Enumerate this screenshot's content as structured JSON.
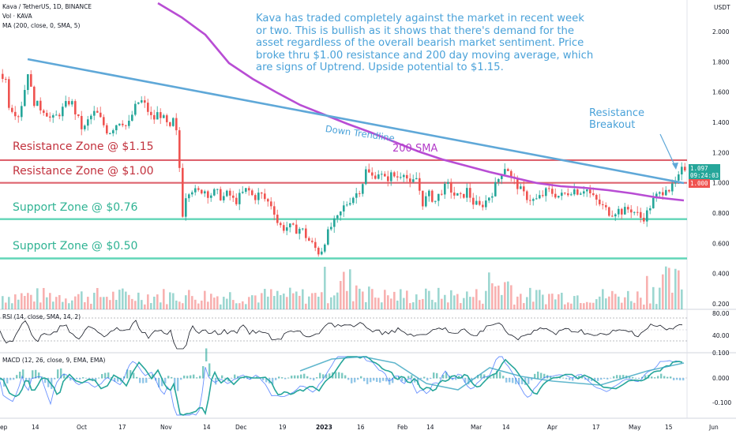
{
  "header": {
    "title": "Kava / TetherUS, 1D, BINANCE",
    "volume": "Vol · KAVA",
    "ma": "MA (200, close, 0, SMA, 5)",
    "rsi": "RSI (14, close, SMA, 14, 2)",
    "macd": "MACD (12, 26, close, 9, EMA, EMA)",
    "currency": "USDT"
  },
  "annotation": "Kava has traded completely against the market in recent week or two. This is bullish as it shows that there's demand for the asset regardless of the overall bearish market sentiment. Price broke thru $1.00 resistance and 200 day moving average, which are signs of Uptrend. Upside potential to $1.15.",
  "labels": {
    "resistance_115": "Resistance Zone @ $1.15",
    "resistance_100": "Resistance Zone @ $1.00",
    "support_076": "Support Zone @ $0.76",
    "support_050": "Support Zone @ $0.50",
    "down_trendline": "Down Trendline",
    "sma_200": "200 SMA",
    "resistance_breakout_1": "Resistance",
    "resistance_breakout_2": "Breakout"
  },
  "price_badges": {
    "last": "1.097",
    "timer": "09:24:03",
    "ma_value": "1.000"
  },
  "colors": {
    "up": "#26a69a",
    "down": "#ef5350",
    "trendline": "#5fa8d8",
    "sma": "#b84dd4",
    "resistance": "#d63d4a",
    "support": "#4fd1b0",
    "annotation": "#4aa2d9"
  },
  "chart_data": {
    "type": "candlestick",
    "x_ticks": [
      "ep",
      "14",
      "Oct",
      "17",
      "Nov",
      "14",
      "Dec",
      "19",
      "2023",
      "16",
      "Feb",
      "14",
      "Mar",
      "14",
      "Apr",
      "17",
      "May",
      "15",
      "Jun"
    ],
    "y_ticks": [
      "2.000",
      "1.800",
      "1.600",
      "1.400",
      "1.200",
      "1.000",
      "0.800",
      "0.600",
      "0.400",
      "0.200"
    ],
    "ylim": [
      0.15,
      2.2
    ],
    "rsi_ticks": [
      "80.00",
      "40.00"
    ],
    "macd_ticks": [
      "0.100",
      "0.000",
      "-0.100"
    ],
    "resistance_levels": [
      1.15,
      1.0
    ],
    "support_levels": [
      0.76,
      0.5
    ],
    "price_path": [
      [
        0,
        1.72
      ],
      [
        6,
        1.68
      ],
      [
        10,
        1.52
      ],
      [
        16,
        1.48
      ],
      [
        22,
        1.45
      ],
      [
        28,
        1.56
      ],
      [
        34,
        1.74
      ],
      [
        40,
        1.55
      ],
      [
        48,
        1.5
      ],
      [
        56,
        1.48
      ],
      [
        64,
        1.41
      ],
      [
        72,
        1.45
      ],
      [
        80,
        1.5
      ],
      [
        88,
        1.55
      ],
      [
        96,
        1.44
      ],
      [
        104,
        1.34
      ],
      [
        112,
        1.43
      ],
      [
        120,
        1.47
      ],
      [
        128,
        1.4
      ],
      [
        136,
        1.33
      ],
      [
        144,
        1.38
      ],
      [
        152,
        1.42
      ],
      [
        160,
        1.36
      ],
      [
        168,
        1.48
      ],
      [
        176,
        1.55
      ],
      [
        184,
        1.5
      ],
      [
        192,
        1.41
      ],
      [
        200,
        1.47
      ],
      [
        208,
        1.4
      ],
      [
        214,
        1.35
      ],
      [
        220,
        1.44
      ],
      [
        226,
        1.1
      ],
      [
        230,
        0.8
      ],
      [
        234,
        0.92
      ],
      [
        240,
        0.97
      ],
      [
        248,
        0.93
      ],
      [
        256,
        0.96
      ],
      [
        264,
        0.92
      ],
      [
        272,
        0.94
      ],
      [
        280,
        0.9
      ],
      [
        288,
        0.93
      ],
      [
        296,
        0.87
      ],
      [
        304,
        0.92
      ],
      [
        312,
        0.96
      ],
      [
        320,
        0.9
      ],
      [
        328,
        0.93
      ],
      [
        336,
        0.88
      ],
      [
        344,
        0.85
      ],
      [
        350,
        0.74
      ],
      [
        356,
        0.7
      ],
      [
        364,
        0.71
      ],
      [
        372,
        0.69
      ],
      [
        380,
        0.7
      ],
      [
        388,
        0.63
      ],
      [
        396,
        0.58
      ],
      [
        404,
        0.53
      ],
      [
        410,
        0.62
      ],
      [
        418,
        0.71
      ],
      [
        426,
        0.76
      ],
      [
        434,
        0.84
      ],
      [
        442,
        0.89
      ],
      [
        450,
        0.93
      ],
      [
        456,
        0.97
      ],
      [
        462,
        1.08
      ],
      [
        470,
        1.04
      ],
      [
        478,
        1.07
      ],
      [
        486,
        1.02
      ],
      [
        494,
        1.05
      ],
      [
        502,
        1.04
      ],
      [
        510,
        1.08
      ],
      [
        518,
        0.98
      ],
      [
        526,
        1.03
      ],
      [
        534,
        0.87
      ],
      [
        542,
        0.92
      ],
      [
        550,
        0.88
      ],
      [
        558,
        0.95
      ],
      [
        566,
        0.98
      ],
      [
        574,
        0.92
      ],
      [
        582,
        0.9
      ],
      [
        590,
        0.95
      ],
      [
        598,
        0.87
      ],
      [
        606,
        0.84
      ],
      [
        614,
        0.88
      ],
      [
        622,
        0.94
      ],
      [
        628,
        1.0
      ],
      [
        634,
        1.08
      ],
      [
        640,
        1.12
      ],
      [
        646,
        1.03
      ],
      [
        652,
        1.0
      ],
      [
        660,
        0.93
      ],
      [
        668,
        0.9
      ],
      [
        676,
        0.88
      ],
      [
        684,
        0.91
      ],
      [
        692,
        0.95
      ],
      [
        700,
        0.93
      ],
      [
        708,
        0.91
      ],
      [
        716,
        0.93
      ],
      [
        724,
        0.96
      ],
      [
        732,
        0.94
      ],
      [
        740,
        0.97
      ],
      [
        748,
        0.91
      ],
      [
        756,
        0.87
      ],
      [
        764,
        0.83
      ],
      [
        772,
        0.8
      ],
      [
        780,
        0.82
      ],
      [
        788,
        0.81
      ],
      [
        796,
        0.83
      ],
      [
        804,
        0.8
      ],
      [
        812,
        0.76
      ],
      [
        818,
        0.8
      ],
      [
        824,
        0.87
      ],
      [
        830,
        0.91
      ],
      [
        836,
        0.93
      ],
      [
        842,
        0.98
      ],
      [
        848,
        0.95
      ],
      [
        854,
        1.0
      ],
      [
        858,
        1.03
      ],
      [
        862,
        1.08
      ],
      [
        866,
        1.1
      ]
    ]
  }
}
